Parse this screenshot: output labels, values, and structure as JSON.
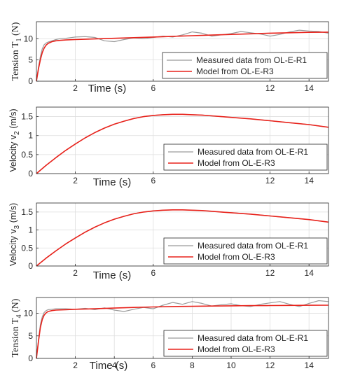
{
  "chart_data": [
    {
      "type": "line",
      "ylabel": {
        "main": "Tension T",
        "sub": "1",
        "unit": " (N)"
      },
      "xlabel": "Time (s)",
      "xlim": [
        0,
        15
      ],
      "ylim": [
        0,
        14
      ],
      "xticks": [
        2,
        6,
        12,
        14
      ],
      "yticks": [
        0,
        5,
        10
      ],
      "grid": true,
      "legend_position": "lower-right",
      "series": [
        {
          "name": "Measured data from OL-E-R1",
          "color": "#9a9a9a",
          "x": [
            0,
            0.1,
            0.2,
            0.3,
            0.4,
            0.5,
            0.6,
            0.8,
            1.0,
            1.2,
            1.5,
            2.0,
            2.5,
            3.0,
            3.5,
            4.0,
            4.5,
            5.0,
            5.5,
            6.0,
            6.5,
            7.0,
            7.5,
            8.0,
            8.5,
            9.0,
            9.5,
            10.0,
            10.5,
            11.0,
            11.5,
            12.0,
            12.5,
            13.0,
            13.5,
            14.0,
            14.5,
            15.0
          ],
          "y": [
            0,
            3.2,
            5.8,
            7.6,
            8.6,
            9.0,
            9.2,
            9.5,
            9.8,
            10.0,
            10.1,
            10.4,
            10.5,
            10.3,
            9.5,
            9.3,
            9.8,
            10.2,
            10.0,
            10.3,
            10.6,
            10.4,
            10.9,
            11.6,
            11.3,
            10.6,
            10.9,
            11.2,
            11.7,
            11.4,
            11.1,
            10.6,
            11.0,
            11.6,
            12.0,
            11.8,
            11.7,
            11.3
          ]
        },
        {
          "name": "Model from OL-E-R3",
          "color": "#e8221b",
          "x": [
            0,
            0.1,
            0.2,
            0.3,
            0.4,
            0.5,
            0.6,
            0.8,
            1.0,
            1.2,
            1.5,
            2.0,
            3.0,
            4.0,
            5.0,
            6.0,
            7.0,
            8.0,
            9.0,
            10.0,
            11.0,
            12.0,
            13.0,
            14.0,
            15.0
          ],
          "y": [
            0,
            2.8,
            5.0,
            6.7,
            7.8,
            8.5,
            8.9,
            9.3,
            9.5,
            9.6,
            9.7,
            9.8,
            9.95,
            10.1,
            10.25,
            10.4,
            10.55,
            10.7,
            10.85,
            11.0,
            11.15,
            11.3,
            11.4,
            11.5,
            11.55
          ]
        }
      ]
    },
    {
      "type": "line",
      "ylabel": {
        "main": "Velocity v",
        "sub": "2",
        "unit": " (m/s)"
      },
      "xlabel": "Time (s)",
      "xlim": [
        0,
        15
      ],
      "ylim": [
        0,
        1.75
      ],
      "xticks": [
        2,
        6,
        12,
        14
      ],
      "yticks": [
        0,
        0.5,
        1,
        1.5
      ],
      "grid": true,
      "legend_position": "lower-right",
      "series": [
        {
          "name": "Measured data from OL-E-R1",
          "color": "#9a9a9a",
          "x": [
            0,
            0.5,
            1,
            1.5,
            2,
            2.5,
            3,
            3.5,
            4,
            4.5,
            5,
            5.5,
            6,
            6.5,
            7,
            7.5,
            8,
            8.5,
            9,
            9.5,
            10,
            11,
            12,
            13,
            14,
            15
          ],
          "y": [
            0,
            0.22,
            0.42,
            0.61,
            0.78,
            0.94,
            1.08,
            1.2,
            1.3,
            1.38,
            1.45,
            1.5,
            1.53,
            1.55,
            1.56,
            1.56,
            1.55,
            1.54,
            1.52,
            1.5,
            1.48,
            1.44,
            1.39,
            1.34,
            1.29,
            1.22
          ]
        },
        {
          "name": "Model from OL-E-R3",
          "color": "#e8221b",
          "x": [
            0,
            0.5,
            1,
            1.5,
            2,
            2.5,
            3,
            3.5,
            4,
            4.5,
            5,
            5.5,
            6,
            6.5,
            7,
            7.5,
            8,
            8.5,
            9,
            9.5,
            10,
            11,
            12,
            13,
            14,
            15
          ],
          "y": [
            0,
            0.22,
            0.42,
            0.61,
            0.78,
            0.94,
            1.08,
            1.2,
            1.3,
            1.38,
            1.45,
            1.5,
            1.53,
            1.55,
            1.56,
            1.56,
            1.55,
            1.54,
            1.52,
            1.5,
            1.48,
            1.44,
            1.39,
            1.34,
            1.29,
            1.22
          ]
        }
      ]
    },
    {
      "type": "line",
      "ylabel": {
        "main": "Velocity v",
        "sub": "3",
        "unit": " (m/s)"
      },
      "xlabel": "Time (s)",
      "xlim": [
        0,
        15
      ],
      "ylim": [
        0,
        1.75
      ],
      "xticks": [
        2,
        6,
        12,
        14
      ],
      "yticks": [
        0,
        0.5,
        1,
        1.5
      ],
      "grid": true,
      "legend_position": "lower-right",
      "series": [
        {
          "name": "Measured data from OL-E-R1",
          "color": "#9a9a9a",
          "x": [
            0,
            0.5,
            1,
            1.5,
            2,
            2.5,
            3,
            3.5,
            4,
            4.5,
            5,
            5.5,
            6,
            6.5,
            7,
            7.5,
            8,
            8.5,
            9,
            9.5,
            10,
            11,
            12,
            13,
            14,
            15
          ],
          "y": [
            0,
            0.22,
            0.42,
            0.61,
            0.78,
            0.94,
            1.08,
            1.2,
            1.3,
            1.38,
            1.45,
            1.5,
            1.53,
            1.55,
            1.56,
            1.56,
            1.55,
            1.54,
            1.52,
            1.5,
            1.48,
            1.44,
            1.39,
            1.34,
            1.29,
            1.22
          ]
        },
        {
          "name": "Model from OL-E-R3",
          "color": "#e8221b",
          "x": [
            0,
            0.5,
            1,
            1.5,
            2,
            2.5,
            3,
            3.5,
            4,
            4.5,
            5,
            5.5,
            6,
            6.5,
            7,
            7.5,
            8,
            8.5,
            9,
            9.5,
            10,
            11,
            12,
            13,
            14,
            15
          ],
          "y": [
            0,
            0.22,
            0.42,
            0.61,
            0.78,
            0.94,
            1.08,
            1.2,
            1.3,
            1.38,
            1.45,
            1.5,
            1.53,
            1.55,
            1.56,
            1.56,
            1.55,
            1.54,
            1.52,
            1.5,
            1.48,
            1.44,
            1.39,
            1.34,
            1.29,
            1.22
          ]
        }
      ]
    },
    {
      "type": "line",
      "ylabel": {
        "main": "Tension T",
        "sub": "4",
        "unit": " (N)"
      },
      "xlabel": "Time (s)",
      "xlim": [
        0,
        15
      ],
      "ylim": [
        0,
        13.5
      ],
      "xticks": [
        2,
        4,
        6,
        8,
        10,
        12,
        14
      ],
      "yticks": [
        0,
        5,
        10
      ],
      "grid": true,
      "legend_position": "lower-right",
      "series": [
        {
          "name": "Measured data from OL-E-R1",
          "color": "#9a9a9a",
          "x": [
            0,
            0.1,
            0.2,
            0.3,
            0.4,
            0.5,
            0.6,
            0.8,
            1.0,
            1.5,
            2.0,
            2.5,
            3.0,
            3.5,
            4.0,
            4.5,
            5.0,
            5.5,
            6.0,
            6.5,
            7.0,
            7.5,
            8.0,
            8.5,
            9.0,
            9.5,
            10.0,
            10.5,
            11.0,
            11.5,
            12.0,
            12.5,
            13.0,
            13.5,
            14.0,
            14.5,
            15.0
          ],
          "y": [
            0,
            4.0,
            7.5,
            9.2,
            10.2,
            10.6,
            10.8,
            10.9,
            11.0,
            11.0,
            10.9,
            11.1,
            10.8,
            11.2,
            10.7,
            10.4,
            10.9,
            11.3,
            11.0,
            11.8,
            12.4,
            12.0,
            12.6,
            12.2,
            11.6,
            11.9,
            12.1,
            11.7,
            11.5,
            12.0,
            12.3,
            12.6,
            12.0,
            11.5,
            12.2,
            12.8,
            12.6
          ]
        },
        {
          "name": "Model from OL-E-R3",
          "color": "#e8221b",
          "x": [
            0,
            0.1,
            0.2,
            0.3,
            0.4,
            0.5,
            0.6,
            0.8,
            1.0,
            1.5,
            2.0,
            3.0,
            4.0,
            5.0,
            6.0,
            7.0,
            8.0,
            9.0,
            10.0,
            11.0,
            12.0,
            13.0,
            14.0,
            15.0
          ],
          "y": [
            0,
            3.6,
            6.8,
            8.6,
            9.6,
            10.1,
            10.4,
            10.6,
            10.7,
            10.8,
            10.9,
            11.0,
            11.15,
            11.3,
            11.4,
            11.5,
            11.55,
            11.6,
            11.65,
            11.7,
            11.72,
            11.75,
            11.78,
            11.8
          ]
        }
      ]
    }
  ]
}
